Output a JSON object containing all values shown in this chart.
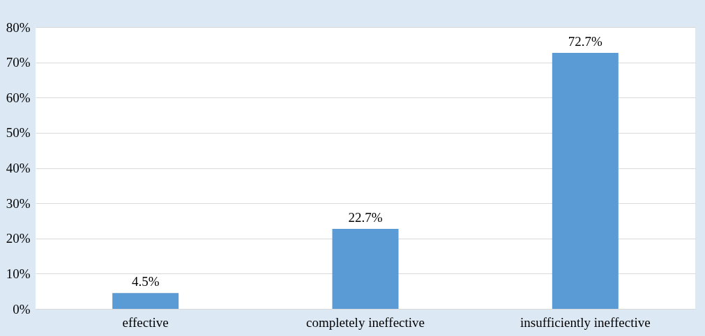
{
  "chart_data": {
    "type": "bar",
    "categories": [
      "effective",
      "completely ineffective",
      "insufficiently ineffective"
    ],
    "values": [
      4.5,
      22.7,
      72.7
    ],
    "color": "#5b9bd5",
    "value_labels": [
      "4.5%",
      "22.7%",
      "72.7%"
    ],
    "ylim": [
      0,
      80
    ],
    "yticks": [
      {
        "value": 0,
        "label": "0%"
      },
      {
        "value": 10,
        "label": "10%"
      },
      {
        "value": 20,
        "label": "20%"
      },
      {
        "value": 30,
        "label": "30%"
      },
      {
        "value": 40,
        "label": "40%"
      },
      {
        "value": 50,
        "label": "50%"
      },
      {
        "value": 60,
        "label": "60%"
      },
      {
        "value": 70,
        "label": "70%"
      },
      {
        "value": 80,
        "label": "80%"
      }
    ],
    "grid": "y"
  }
}
